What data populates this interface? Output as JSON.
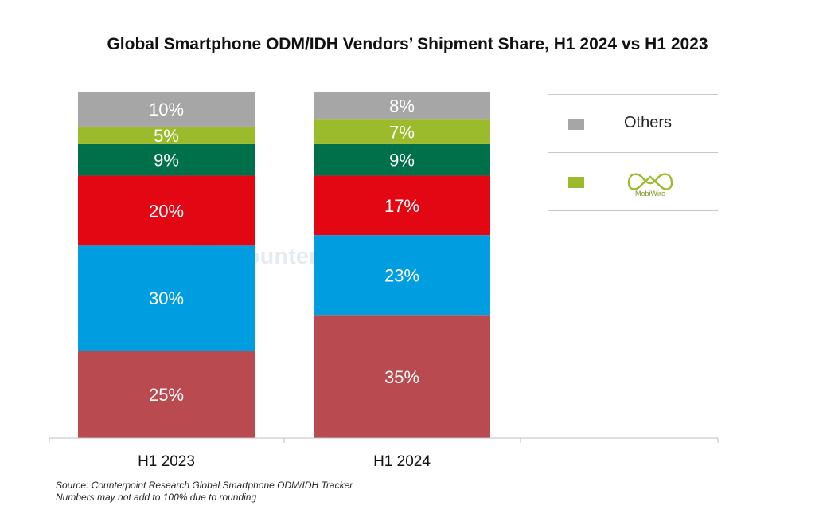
{
  "title": "Global Smartphone ODM/IDH Vendors’ Shipment Share, H1 2024 vs H1 2023",
  "source": {
    "line1": "Source: Counterpoint Research Global Smartphone ODM/IDH Tracker",
    "line2": "Numbers may not add to 100% due to rounding"
  },
  "watermark": "Counterpoint",
  "legend": {
    "items": [
      {
        "label": "Others",
        "color": "#a6a6a6"
      },
      {
        "label": "MobiWire",
        "color": "#9bbb2c",
        "logo": true
      }
    ]
  },
  "chart_data": {
    "type": "bar",
    "stacked": true,
    "categories": [
      "H1 2023",
      "H1 2024"
    ],
    "series": [
      {
        "values": [
          25,
          35
        ],
        "color": "#b84a50",
        "labels": [
          "25%",
          "35%"
        ]
      },
      {
        "values": [
          30,
          23
        ],
        "color": "#009ee0",
        "labels": [
          "30%",
          "23%"
        ]
      },
      {
        "values": [
          20,
          17
        ],
        "color": "#e30613",
        "labels": [
          "20%",
          "17%"
        ]
      },
      {
        "values": [
          9,
          9
        ],
        "color": "#00704a",
        "labels": [
          "9%",
          "9%"
        ]
      },
      {
        "name": "MobiWire",
        "values": [
          5,
          7
        ],
        "color": "#9bbb2c",
        "labels": [
          "5%",
          "7%"
        ]
      },
      {
        "name": "Others",
        "values": [
          10,
          8
        ],
        "color": "#a6a6a6",
        "labels": [
          "10%",
          "8%"
        ]
      }
    ],
    "ylim": [
      0,
      100
    ],
    "legend_position": "right"
  }
}
